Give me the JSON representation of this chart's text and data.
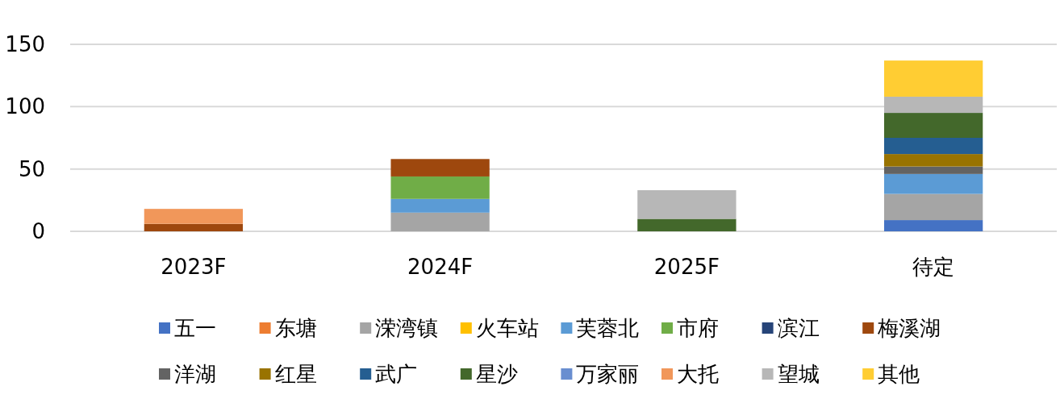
{
  "chart_data": {
    "type": "bar",
    "stacked": true,
    "categories": [
      "2023F",
      "2024F",
      "2025F",
      "待定"
    ],
    "series": [
      {
        "name": "五一",
        "color": "#4472c4",
        "values": [
          null,
          null,
          null,
          9
        ]
      },
      {
        "name": "东塘",
        "color": "#ed7d31",
        "values": [
          null,
          null,
          null,
          null
        ]
      },
      {
        "name": "溁湾镇",
        "color": "#a5a5a5",
        "values": [
          null,
          15,
          null,
          21
        ]
      },
      {
        "name": "火车站",
        "color": "#ffc000",
        "values": [
          null,
          null,
          null,
          null
        ]
      },
      {
        "name": "芙蓉北",
        "color": "#5b9bd5",
        "values": [
          null,
          11,
          null,
          16
        ]
      },
      {
        "name": "市府",
        "color": "#70ad47",
        "values": [
          null,
          18,
          null,
          null
        ]
      },
      {
        "name": "滨江",
        "color": "#264478",
        "values": [
          null,
          null,
          null,
          null
        ]
      },
      {
        "name": "梅溪湖",
        "color": "#9e480e",
        "values": [
          6,
          14,
          null,
          null
        ]
      },
      {
        "name": "洋湖",
        "color": "#636363",
        "values": [
          null,
          null,
          null,
          6
        ]
      },
      {
        "name": "红星",
        "color": "#997300",
        "values": [
          null,
          null,
          null,
          10
        ]
      },
      {
        "name": "武广",
        "color": "#255e91",
        "values": [
          null,
          null,
          null,
          13
        ]
      },
      {
        "name": "星沙",
        "color": "#43682b",
        "values": [
          null,
          null,
          10,
          20
        ]
      },
      {
        "name": "万家丽",
        "color": "#698ed0",
        "values": [
          null,
          null,
          null,
          null
        ]
      },
      {
        "name": "大托",
        "color": "#f1975a",
        "values": [
          12,
          null,
          null,
          null
        ]
      },
      {
        "name": "望城",
        "color": "#b7b7b7",
        "values": [
          null,
          null,
          23,
          13
        ]
      },
      {
        "name": "其他",
        "color": "#ffcd33",
        "values": [
          null,
          null,
          null,
          29
        ]
      }
    ],
    "ylim": [
      0,
      150
    ],
    "yticks": [
      0,
      50,
      100,
      150
    ],
    "grid": "y",
    "legend": "bottom"
  }
}
